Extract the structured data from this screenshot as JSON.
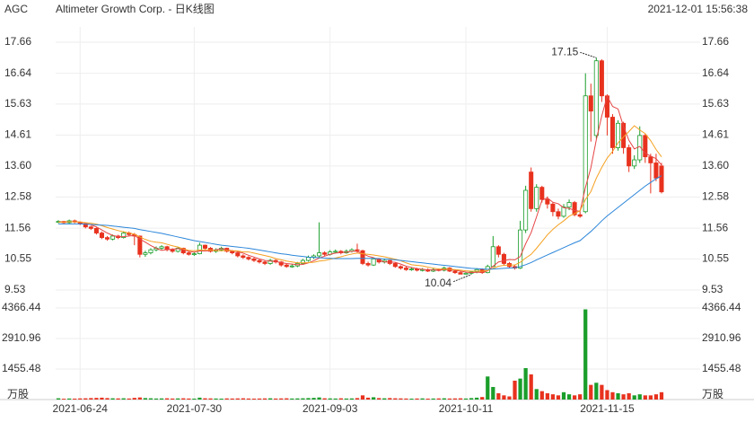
{
  "chart_data": {
    "type": "candlestick",
    "title": "AGC",
    "subtitle": "Altimeter Growth Corp. - 日K线图",
    "timestamp": "2021-12-01 15:56:38",
    "categories": [
      null,
      null,
      null,
      null,
      "2021-06-24",
      null,
      null,
      null,
      null,
      null,
      null,
      null,
      null,
      null,
      null,
      null,
      null,
      null,
      null,
      null,
      null,
      null,
      null,
      null,
      null,
      "2021-07-30",
      null,
      null,
      null,
      null,
      null,
      null,
      null,
      null,
      null,
      null,
      null,
      null,
      null,
      null,
      null,
      null,
      null,
      null,
      null,
      null,
      null,
      null,
      null,
      null,
      "2021-09-03",
      null,
      null,
      null,
      null,
      null,
      null,
      null,
      null,
      null,
      null,
      null,
      null,
      null,
      null,
      null,
      null,
      null,
      null,
      null,
      null,
      null,
      null,
      null,
      null,
      "2021-10-11",
      null,
      null,
      null,
      null,
      null,
      null,
      null,
      null,
      null,
      null,
      null,
      null,
      null,
      null,
      null,
      null,
      null,
      null,
      null,
      null,
      null,
      null,
      null,
      null,
      null,
      "2021-11-15",
      null,
      null,
      null,
      null,
      null,
      null,
      null,
      null,
      null,
      null
    ],
    "open": [
      11.75,
      11.78,
      11.74,
      11.8,
      11.76,
      11.7,
      11.6,
      11.55,
      11.4,
      11.25,
      11.2,
      11.3,
      11.25,
      11.4,
      11.35,
      11.3,
      10.7,
      10.75,
      10.85,
      10.9,
      10.95,
      10.85,
      10.8,
      10.9,
      10.75,
      10.7,
      10.72,
      11.0,
      10.9,
      10.8,
      10.85,
      10.9,
      10.8,
      10.75,
      10.65,
      10.6,
      10.55,
      10.5,
      10.45,
      10.4,
      10.5,
      10.45,
      10.35,
      10.3,
      10.32,
      10.4,
      10.5,
      10.6,
      10.65,
      10.75,
      10.7,
      10.78,
      10.8,
      10.75,
      10.8,
      10.85,
      10.82,
      10.4,
      10.35,
      10.55,
      10.45,
      10.5,
      10.4,
      10.3,
      10.25,
      10.2,
      10.22,
      10.18,
      10.2,
      10.15,
      10.2,
      10.18,
      10.25,
      10.15,
      10.1,
      10.05,
      10.08,
      10.12,
      10.2,
      10.1,
      10.3,
      10.95,
      10.7,
      10.4,
      10.3,
      10.25,
      11.5,
      13.4,
      12.2,
      12.9,
      12.5,
      12.35,
      12.1,
      11.95,
      12.25,
      12.4,
      12.0,
      12.1,
      15.9,
      14.6,
      17.05,
      15.9,
      15.2,
      14.2,
      15.0,
      14.2,
      13.6,
      13.8,
      14.6,
      13.9,
      13.7,
      13.6
    ],
    "high": [
      11.82,
      11.8,
      11.84,
      11.84,
      11.78,
      11.72,
      11.64,
      11.58,
      11.45,
      11.3,
      11.35,
      11.34,
      11.46,
      11.45,
      11.4,
      11.32,
      10.82,
      10.9,
      10.96,
      11.0,
      10.98,
      10.9,
      10.95,
      10.92,
      10.8,
      10.78,
      11.08,
      11.02,
      10.94,
      10.9,
      10.95,
      10.92,
      10.84,
      10.78,
      10.7,
      10.64,
      10.6,
      10.55,
      10.5,
      10.55,
      10.54,
      10.48,
      10.4,
      10.38,
      10.45,
      10.55,
      10.66,
      10.7,
      11.75,
      10.8,
      10.84,
      10.86,
      10.84,
      10.86,
      10.9,
      11.05,
      10.85,
      10.46,
      10.6,
      10.58,
      10.56,
      10.52,
      10.44,
      10.34,
      10.3,
      10.28,
      10.26,
      10.25,
      10.24,
      10.25,
      10.24,
      10.3,
      10.28,
      10.2,
      10.14,
      10.12,
      10.16,
      10.25,
      10.24,
      10.36,
      11.3,
      11.0,
      10.75,
      10.45,
      10.35,
      11.8,
      12.95,
      13.55,
      13.0,
      12.95,
      12.6,
      12.4,
      12.2,
      12.35,
      12.5,
      12.45,
      12.1,
      16.64,
      16.3,
      17.15,
      17.1,
      15.95,
      15.3,
      15.1,
      15.05,
      14.3,
      13.95,
      14.9,
      14.65,
      14.0,
      14.0,
      13.7
    ],
    "low": [
      11.72,
      11.7,
      11.7,
      11.72,
      11.66,
      11.55,
      11.5,
      11.35,
      11.2,
      11.15,
      11.16,
      11.2,
      11.22,
      11.3,
      11.0,
      10.6,
      10.62,
      10.7,
      10.8,
      10.85,
      10.8,
      10.75,
      10.76,
      10.7,
      10.66,
      10.65,
      10.7,
      10.85,
      10.76,
      10.75,
      10.8,
      10.76,
      10.7,
      10.6,
      10.55,
      10.5,
      10.45,
      10.4,
      10.35,
      10.36,
      10.4,
      10.3,
      10.26,
      10.26,
      10.28,
      10.36,
      10.46,
      10.55,
      10.6,
      10.65,
      10.66,
      10.74,
      10.7,
      10.72,
      10.76,
      10.76,
      10.35,
      10.3,
      10.32,
      10.4,
      10.4,
      10.35,
      10.26,
      10.2,
      10.16,
      10.16,
      10.14,
      10.14,
      10.12,
      10.12,
      10.14,
      10.14,
      10.12,
      10.06,
      10.05,
      10.05,
      10.04,
      10.08,
      10.06,
      10.08,
      10.28,
      10.6,
      10.35,
      10.25,
      10.2,
      10.22,
      11.4,
      12.1,
      12.1,
      12.4,
      12.2,
      11.95,
      11.85,
      11.9,
      12.15,
      11.95,
      11.9,
      12.05,
      14.4,
      14.5,
      15.7,
      14.6,
      14.0,
      14.1,
      14.0,
      13.4,
      13.5,
      13.7,
      13.7,
      12.7,
      13.1,
      12.7
    ],
    "close": [
      11.78,
      11.74,
      11.8,
      11.76,
      11.7,
      11.6,
      11.55,
      11.4,
      11.25,
      11.2,
      11.3,
      11.25,
      11.4,
      11.35,
      11.3,
      10.7,
      10.75,
      10.85,
      10.9,
      10.95,
      10.85,
      10.8,
      10.9,
      10.75,
      10.7,
      10.72,
      11.0,
      10.9,
      10.8,
      10.85,
      10.9,
      10.8,
      10.75,
      10.65,
      10.6,
      10.55,
      10.5,
      10.45,
      10.4,
      10.5,
      10.45,
      10.35,
      10.3,
      10.32,
      10.4,
      10.5,
      10.6,
      10.65,
      10.75,
      10.7,
      10.78,
      10.8,
      10.75,
      10.8,
      10.85,
      10.82,
      10.4,
      10.35,
      10.55,
      10.45,
      10.5,
      10.4,
      10.3,
      10.25,
      10.2,
      10.22,
      10.18,
      10.2,
      10.15,
      10.2,
      10.18,
      10.25,
      10.15,
      10.1,
      10.05,
      10.08,
      10.12,
      10.2,
      10.1,
      10.3,
      10.95,
      10.7,
      10.4,
      10.3,
      10.25,
      11.5,
      12.8,
      12.2,
      12.9,
      12.5,
      12.35,
      12.1,
      11.95,
      12.25,
      12.4,
      12.0,
      11.95,
      15.9,
      15.4,
      17.05,
      15.9,
      15.2,
      14.2,
      15.0,
      14.2,
      13.6,
      13.8,
      14.6,
      13.9,
      13.7,
      13.2,
      12.75
    ],
    "volume": [
      60,
      40,
      50,
      45,
      55,
      60,
      70,
      80,
      90,
      70,
      60,
      55,
      60,
      50,
      80,
      100,
      70,
      60,
      50,
      55,
      60,
      50,
      55,
      60,
      50,
      45,
      90,
      60,
      55,
      50,
      45,
      55,
      50,
      55,
      60,
      50,
      45,
      50,
      55,
      60,
      50,
      55,
      60,
      50,
      55,
      60,
      70,
      80,
      100,
      60,
      55,
      50,
      60,
      50,
      55,
      70,
      200,
      90,
      110,
      70,
      60,
      70,
      60,
      55,
      50,
      45,
      50,
      55,
      45,
      50,
      55,
      60,
      50,
      55,
      60,
      50,
      70,
      90,
      120,
      1100,
      600,
      300,
      200,
      150,
      900,
      1000,
      1500,
      1200,
      500,
      400,
      300,
      250,
      200,
      350,
      250,
      200,
      250,
      4300,
      700,
      800,
      700,
      450,
      350,
      300,
      250,
      300,
      200,
      250,
      200,
      200,
      250,
      350
    ],
    "up_color": "#1a9e2a",
    "down_color": "#e8321e",
    "ma": [
      {
        "color": "#e64545",
        "values": [
          11.76,
          11.76,
          11.77,
          11.77,
          11.76,
          11.72,
          11.67,
          11.6,
          11.5,
          11.4,
          11.32,
          11.28,
          11.28,
          11.3,
          11.32,
          11.2,
          11.1,
          10.99,
          10.9,
          10.83,
          10.86,
          10.87,
          10.89,
          10.85,
          10.8,
          10.77,
          10.81,
          10.81,
          10.82,
          10.85,
          10.89,
          10.85,
          10.82,
          10.79,
          10.74,
          10.67,
          10.61,
          10.55,
          10.5,
          10.48,
          10.46,
          10.43,
          10.4,
          10.38,
          10.36,
          10.37,
          10.42,
          10.49,
          10.58,
          10.64,
          10.7,
          10.74,
          10.76,
          10.77,
          10.8,
          10.8,
          10.72,
          10.64,
          10.59,
          10.51,
          10.45,
          10.45,
          10.44,
          10.38,
          10.31,
          10.27,
          10.23,
          10.21,
          10.19,
          10.19,
          10.18,
          10.2,
          10.2,
          10.18,
          10.15,
          10.12,
          10.1,
          10.11,
          10.11,
          10.16,
          10.31,
          10.45,
          10.49,
          10.53,
          10.52,
          10.63,
          11.05,
          11.41,
          11.93,
          12.48,
          12.55,
          12.41,
          12.36,
          12.23,
          12.21,
          12.14,
          12.11,
          12.9,
          13.54,
          14.46,
          15.24,
          15.89,
          15.55,
          15.47,
          14.9,
          14.44,
          14.16,
          14.24,
          14.02,
          13.92,
          13.84,
          13.63
        ]
      },
      {
        "color": "#f5a020",
        "values": [
          11.76,
          11.76,
          11.77,
          11.77,
          11.76,
          11.74,
          11.72,
          11.69,
          11.64,
          11.58,
          11.53,
          11.48,
          11.44,
          11.4,
          11.36,
          11.27,
          11.19,
          11.13,
          11.1,
          11.08,
          11.03,
          10.98,
          10.94,
          10.88,
          10.83,
          10.82,
          10.84,
          10.85,
          10.84,
          10.82,
          10.82,
          10.83,
          10.82,
          10.81,
          10.78,
          10.78,
          10.74,
          10.7,
          10.66,
          10.62,
          10.56,
          10.52,
          10.48,
          10.45,
          10.42,
          10.42,
          10.43,
          10.44,
          10.48,
          10.5,
          10.54,
          10.58,
          10.62,
          10.67,
          10.71,
          10.74,
          10.72,
          10.7,
          10.68,
          10.65,
          10.62,
          10.58,
          10.54,
          10.49,
          10.42,
          10.36,
          10.34,
          10.32,
          10.28,
          10.25,
          10.22,
          10.22,
          10.21,
          10.2,
          10.18,
          10.16,
          10.15,
          10.15,
          10.15,
          10.17,
          10.24,
          10.31,
          10.34,
          10.35,
          10.35,
          10.44,
          10.58,
          10.7,
          10.9,
          11.12,
          11.34,
          11.52,
          11.67,
          11.8,
          11.95,
          12.04,
          12.13,
          12.5,
          12.76,
          13.2,
          13.55,
          13.86,
          14.08,
          14.36,
          14.55,
          14.73,
          14.92,
          14.78,
          14.66,
          14.43,
          14.14,
          13.9
        ]
      },
      {
        "color": "#2b86d9",
        "values": [
          11.7,
          11.7,
          11.7,
          11.7,
          11.7,
          11.69,
          11.68,
          11.67,
          11.66,
          11.65,
          11.63,
          11.61,
          11.59,
          11.57,
          11.55,
          11.51,
          11.48,
          11.45,
          11.42,
          11.39,
          11.35,
          11.31,
          11.27,
          11.23,
          11.19,
          11.15,
          11.12,
          11.09,
          11.06,
          11.03,
          11.0,
          10.98,
          10.96,
          10.94,
          10.92,
          10.9,
          10.87,
          10.84,
          10.81,
          10.78,
          10.75,
          10.72,
          10.7,
          10.67,
          10.65,
          10.63,
          10.61,
          10.6,
          10.59,
          10.58,
          10.57,
          10.56,
          10.56,
          10.56,
          10.56,
          10.57,
          10.57,
          10.57,
          10.57,
          10.56,
          10.55,
          10.54,
          10.52,
          10.5,
          10.48,
          10.46,
          10.44,
          10.42,
          10.4,
          10.38,
          10.36,
          10.34,
          10.32,
          10.3,
          10.28,
          10.26,
          10.24,
          10.23,
          10.22,
          10.21,
          10.22,
          10.23,
          10.24,
          10.25,
          10.26,
          10.3,
          10.36,
          10.43,
          10.52,
          10.6,
          10.68,
          10.76,
          10.84,
          10.92,
          11.0,
          11.08,
          11.15,
          11.3,
          11.45,
          11.62,
          11.8,
          11.96,
          12.1,
          12.24,
          12.38,
          12.52,
          12.66,
          12.8,
          12.94,
          13.06,
          13.18,
          13.28
        ]
      }
    ],
    "ylim": [
      9.53,
      17.66
    ],
    "yticks": [
      9.53,
      10.55,
      11.56,
      12.58,
      {
        "value": 13.6,
        "label": "13.60"
      },
      14.61,
      15.63,
      16.64,
      17.66
    ],
    "volume_ylim": [
      0,
      4366.44
    ],
    "volume_yticks": [
      1455.48,
      2910.96,
      4366.44
    ],
    "volume_unit": "万股",
    "grid": true
  }
}
